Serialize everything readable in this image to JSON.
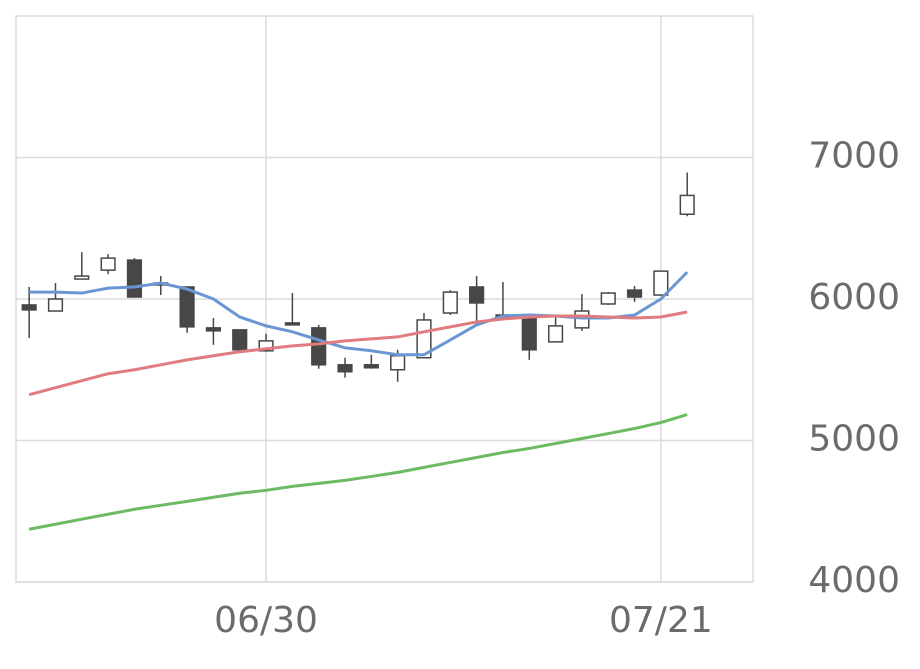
{
  "chart_data": {
    "type": "candlestick",
    "categories": [
      null,
      null,
      null,
      null,
      null,
      null,
      null,
      null,
      null,
      "06/30",
      null,
      null,
      null,
      null,
      null,
      null,
      null,
      null,
      null,
      null,
      null,
      null,
      null,
      null,
      "07/21",
      null
    ],
    "open": [
      5958,
      5915,
      6141,
      6204,
      6275,
      6113,
      6085,
      5796,
      5782,
      5634,
      5831,
      5796,
      5535,
      5535,
      5500,
      5585,
      5901,
      6085,
      5887,
      5887,
      5697,
      5796,
      5965,
      6063,
      6028,
      6599
    ],
    "high": [
      6085,
      6113,
      6331,
      6317,
      6289,
      6162,
      6085,
      5866,
      5782,
      5754,
      6042,
      5817,
      5585,
      5606,
      5641,
      5901,
      6063,
      6162,
      6120,
      5887,
      5887,
      6035,
      6049,
      6092,
      6197,
      6894
    ],
    "low": [
      5725,
      5915,
      6141,
      6176,
      6014,
      6028,
      5761,
      5676,
      5641,
      5627,
      5817,
      5507,
      5444,
      5507,
      5415,
      5585,
      5887,
      5831,
      5866,
      5570,
      5697,
      5775,
      5958,
      5979,
      6028,
      6585
    ],
    "close": [
      5923,
      6000,
      6162,
      6289,
      6014,
      6099,
      5803,
      5775,
      5641,
      5704,
      5817,
      5535,
      5486,
      5514,
      5599,
      5852,
      6049,
      5972,
      5873,
      5641,
      5810,
      5915,
      6042,
      6014,
      6197,
      6732
    ],
    "up_color": "#ffffff",
    "down_color": "#474747",
    "candle_stroke": "#474747",
    "lines": [
      {
        "color": "#6a97d4",
        "values": [
          6049,
          6049,
          6042,
          6077,
          6085,
          6113,
          6070,
          6000,
          5873,
          5810,
          5768,
          5711,
          5655,
          5634,
          5606,
          5606,
          5711,
          5817,
          5880,
          5887,
          5880,
          5866,
          5866,
          5887,
          6000,
          6190
        ]
      },
      {
        "color": "#e07b7f",
        "values": [
          5324,
          5373,
          5423,
          5472,
          5500,
          5535,
          5570,
          5599,
          5627,
          5648,
          5669,
          5683,
          5704,
          5718,
          5732,
          5768,
          5803,
          5838,
          5859,
          5873,
          5880,
          5880,
          5873,
          5866,
          5873,
          5908
        ]
      },
      {
        "color": "#6cba62",
        "values": [
          4373,
          4408,
          4444,
          4479,
          4514,
          4542,
          4570,
          4599,
          4627,
          4648,
          4676,
          4697,
          4718,
          4746,
          4775,
          4810,
          4845,
          4880,
          4915,
          4944,
          4979,
          5014,
          5049,
          5085,
          5127,
          5183
        ]
      }
    ],
    "ylim": [
      4000,
      8000
    ],
    "yticks": [
      4000,
      5000,
      6000,
      7000
    ],
    "grid": true
  }
}
